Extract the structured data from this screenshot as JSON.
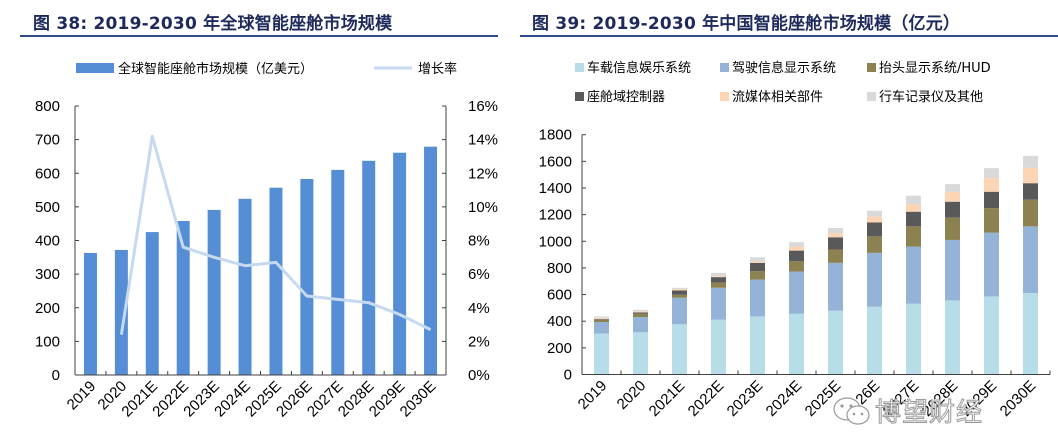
{
  "colors": {
    "title": "#1f2a5c",
    "bar_blue": "#558ed5",
    "growth_line": "#c6d9f1",
    "axis": "#404040",
    "stack": [
      "#b7dee8",
      "#95b3d7",
      "#8c8150",
      "#595959",
      "#fcd5b5",
      "#d9d9d9"
    ]
  },
  "watermark": "博望财经",
  "chart_data": [
    {
      "type": "bar",
      "title": "图 38:  2019-2030 年全球智能座舱市场规模",
      "categories": [
        "2019",
        "2020",
        "2021E",
        "2022E",
        "2023E",
        "2024E",
        "2025E",
        "2026E",
        "2027E",
        "2028E",
        "2029E",
        "2030E"
      ],
      "series": [
        {
          "name": "全球智能座舱市场规模（亿美元）",
          "type": "bar",
          "axis": "left",
          "values": [
            363,
            372,
            425,
            458,
            491,
            524,
            557,
            583,
            610,
            637,
            661,
            679
          ]
        },
        {
          "name": "增长率",
          "type": "line",
          "axis": "right",
          "values": [
            null,
            2.4,
            14.2,
            7.6,
            7.0,
            6.5,
            6.7,
            4.7,
            4.5,
            4.3,
            3.6,
            2.7
          ]
        }
      ],
      "y_left": {
        "min": 0,
        "max": 800,
        "ticks": [
          0,
          100,
          200,
          300,
          400,
          500,
          600,
          700,
          800
        ]
      },
      "y_right": {
        "min": 0,
        "max": 16,
        "ticks": [
          "0%",
          "2%",
          "4%",
          "6%",
          "8%",
          "10%",
          "12%",
          "14%",
          "16%"
        ]
      },
      "xlabel": "",
      "ylabel": "",
      "legend": "top-center",
      "grid": false
    },
    {
      "type": "bar",
      "stacked": true,
      "title": "图 39:  2019-2030 年中国智能座舱市场规模（亿元）",
      "categories": [
        "2019",
        "2020",
        "2021E",
        "2022E",
        "2023E",
        "2024E",
        "2025E",
        "2026E",
        "2027E",
        "2028E",
        "2029E",
        "2030E"
      ],
      "series": [
        {
          "name": "车载信息娱乐系统",
          "values": [
            307,
            317,
            377,
            411,
            436,
            456,
            479,
            509,
            531,
            556,
            586,
            611
          ]
        },
        {
          "name": "驾驶信息显示系统",
          "values": [
            87,
            114,
            199,
            240,
            277,
            317,
            359,
            404,
            429,
            454,
            479,
            501
          ]
        },
        {
          "name": "抬头显示系统/HUD",
          "values": [
            17,
            25,
            23,
            40,
            63,
            77,
            100,
            124,
            152,
            167,
            184,
            200
          ]
        },
        {
          "name": "座舱域控制器",
          "values": [
            5,
            10,
            32,
            40,
            62,
            80,
            92,
            105,
            110,
            120,
            123,
            124
          ]
        },
        {
          "name": "流媒体相关部件",
          "values": [
            10,
            8,
            10,
            7,
            10,
            30,
            32,
            45,
            57,
            75,
            102,
            115
          ]
        },
        {
          "name": "行车记录仪及其他",
          "values": [
            10,
            12,
            10,
            25,
            32,
            33,
            38,
            42,
            63,
            57,
            75,
            90
          ]
        }
      ],
      "y": {
        "min": 0,
        "max": 1800,
        "ticks": [
          0,
          200,
          400,
          600,
          800,
          1000,
          1200,
          1400,
          1600,
          1800
        ]
      },
      "xlabel": "",
      "ylabel": "",
      "legend": "top-center",
      "grid": false
    }
  ]
}
